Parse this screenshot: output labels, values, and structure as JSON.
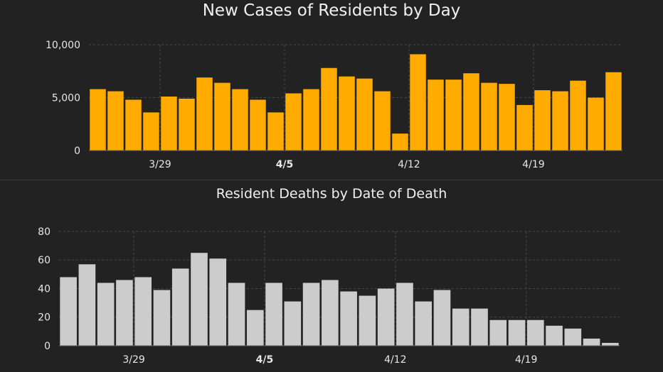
{
  "chart_data": [
    {
      "type": "bar",
      "title": "New Cases of Residents by Day",
      "xlabel": "",
      "ylabel": "",
      "ylim": [
        0,
        10000
      ],
      "yticks": [
        "10,000",
        "5,000",
        "0"
      ],
      "ytick_values": [
        10000,
        5000,
        0
      ],
      "xticks": [
        {
          "label": "3/29",
          "index": 4,
          "bold": false
        },
        {
          "label": "4/5",
          "index": 11,
          "bold": true
        },
        {
          "label": "4/12",
          "index": 18,
          "bold": false
        },
        {
          "label": "4/19",
          "index": 25,
          "bold": false
        }
      ],
      "bar_color": "#ffab00",
      "values": [
        5800,
        5600,
        4800,
        3600,
        5100,
        4900,
        6900,
        6400,
        5800,
        4800,
        3600,
        5400,
        5800,
        7800,
        7000,
        6800,
        5600,
        1600,
        9100,
        6700,
        6700,
        7300,
        6400,
        6300,
        4300,
        5700,
        5600,
        6600,
        5000,
        7400
      ],
      "grid": true
    },
    {
      "type": "bar",
      "title": "Resident Deaths by Date of Death",
      "xlabel": "",
      "ylabel": "",
      "ylim": [
        0,
        80
      ],
      "yticks": [
        "80",
        "60",
        "40",
        "20",
        "0"
      ],
      "ytick_values": [
        80,
        60,
        40,
        20,
        0
      ],
      "xticks": [
        {
          "label": "3/29",
          "index": 4,
          "bold": false
        },
        {
          "label": "4/5",
          "index": 11,
          "bold": true
        },
        {
          "label": "4/12",
          "index": 18,
          "bold": false
        },
        {
          "label": "4/19",
          "index": 25,
          "bold": false
        }
      ],
      "bar_color": "#cccccc",
      "values": [
        48,
        57,
        44,
        46,
        48,
        39,
        54,
        65,
        61,
        44,
        25,
        44,
        31,
        44,
        46,
        38,
        35,
        40,
        44,
        31,
        39,
        26,
        26,
        18,
        18,
        18,
        14,
        12,
        5,
        2
      ],
      "grid": true
    }
  ]
}
